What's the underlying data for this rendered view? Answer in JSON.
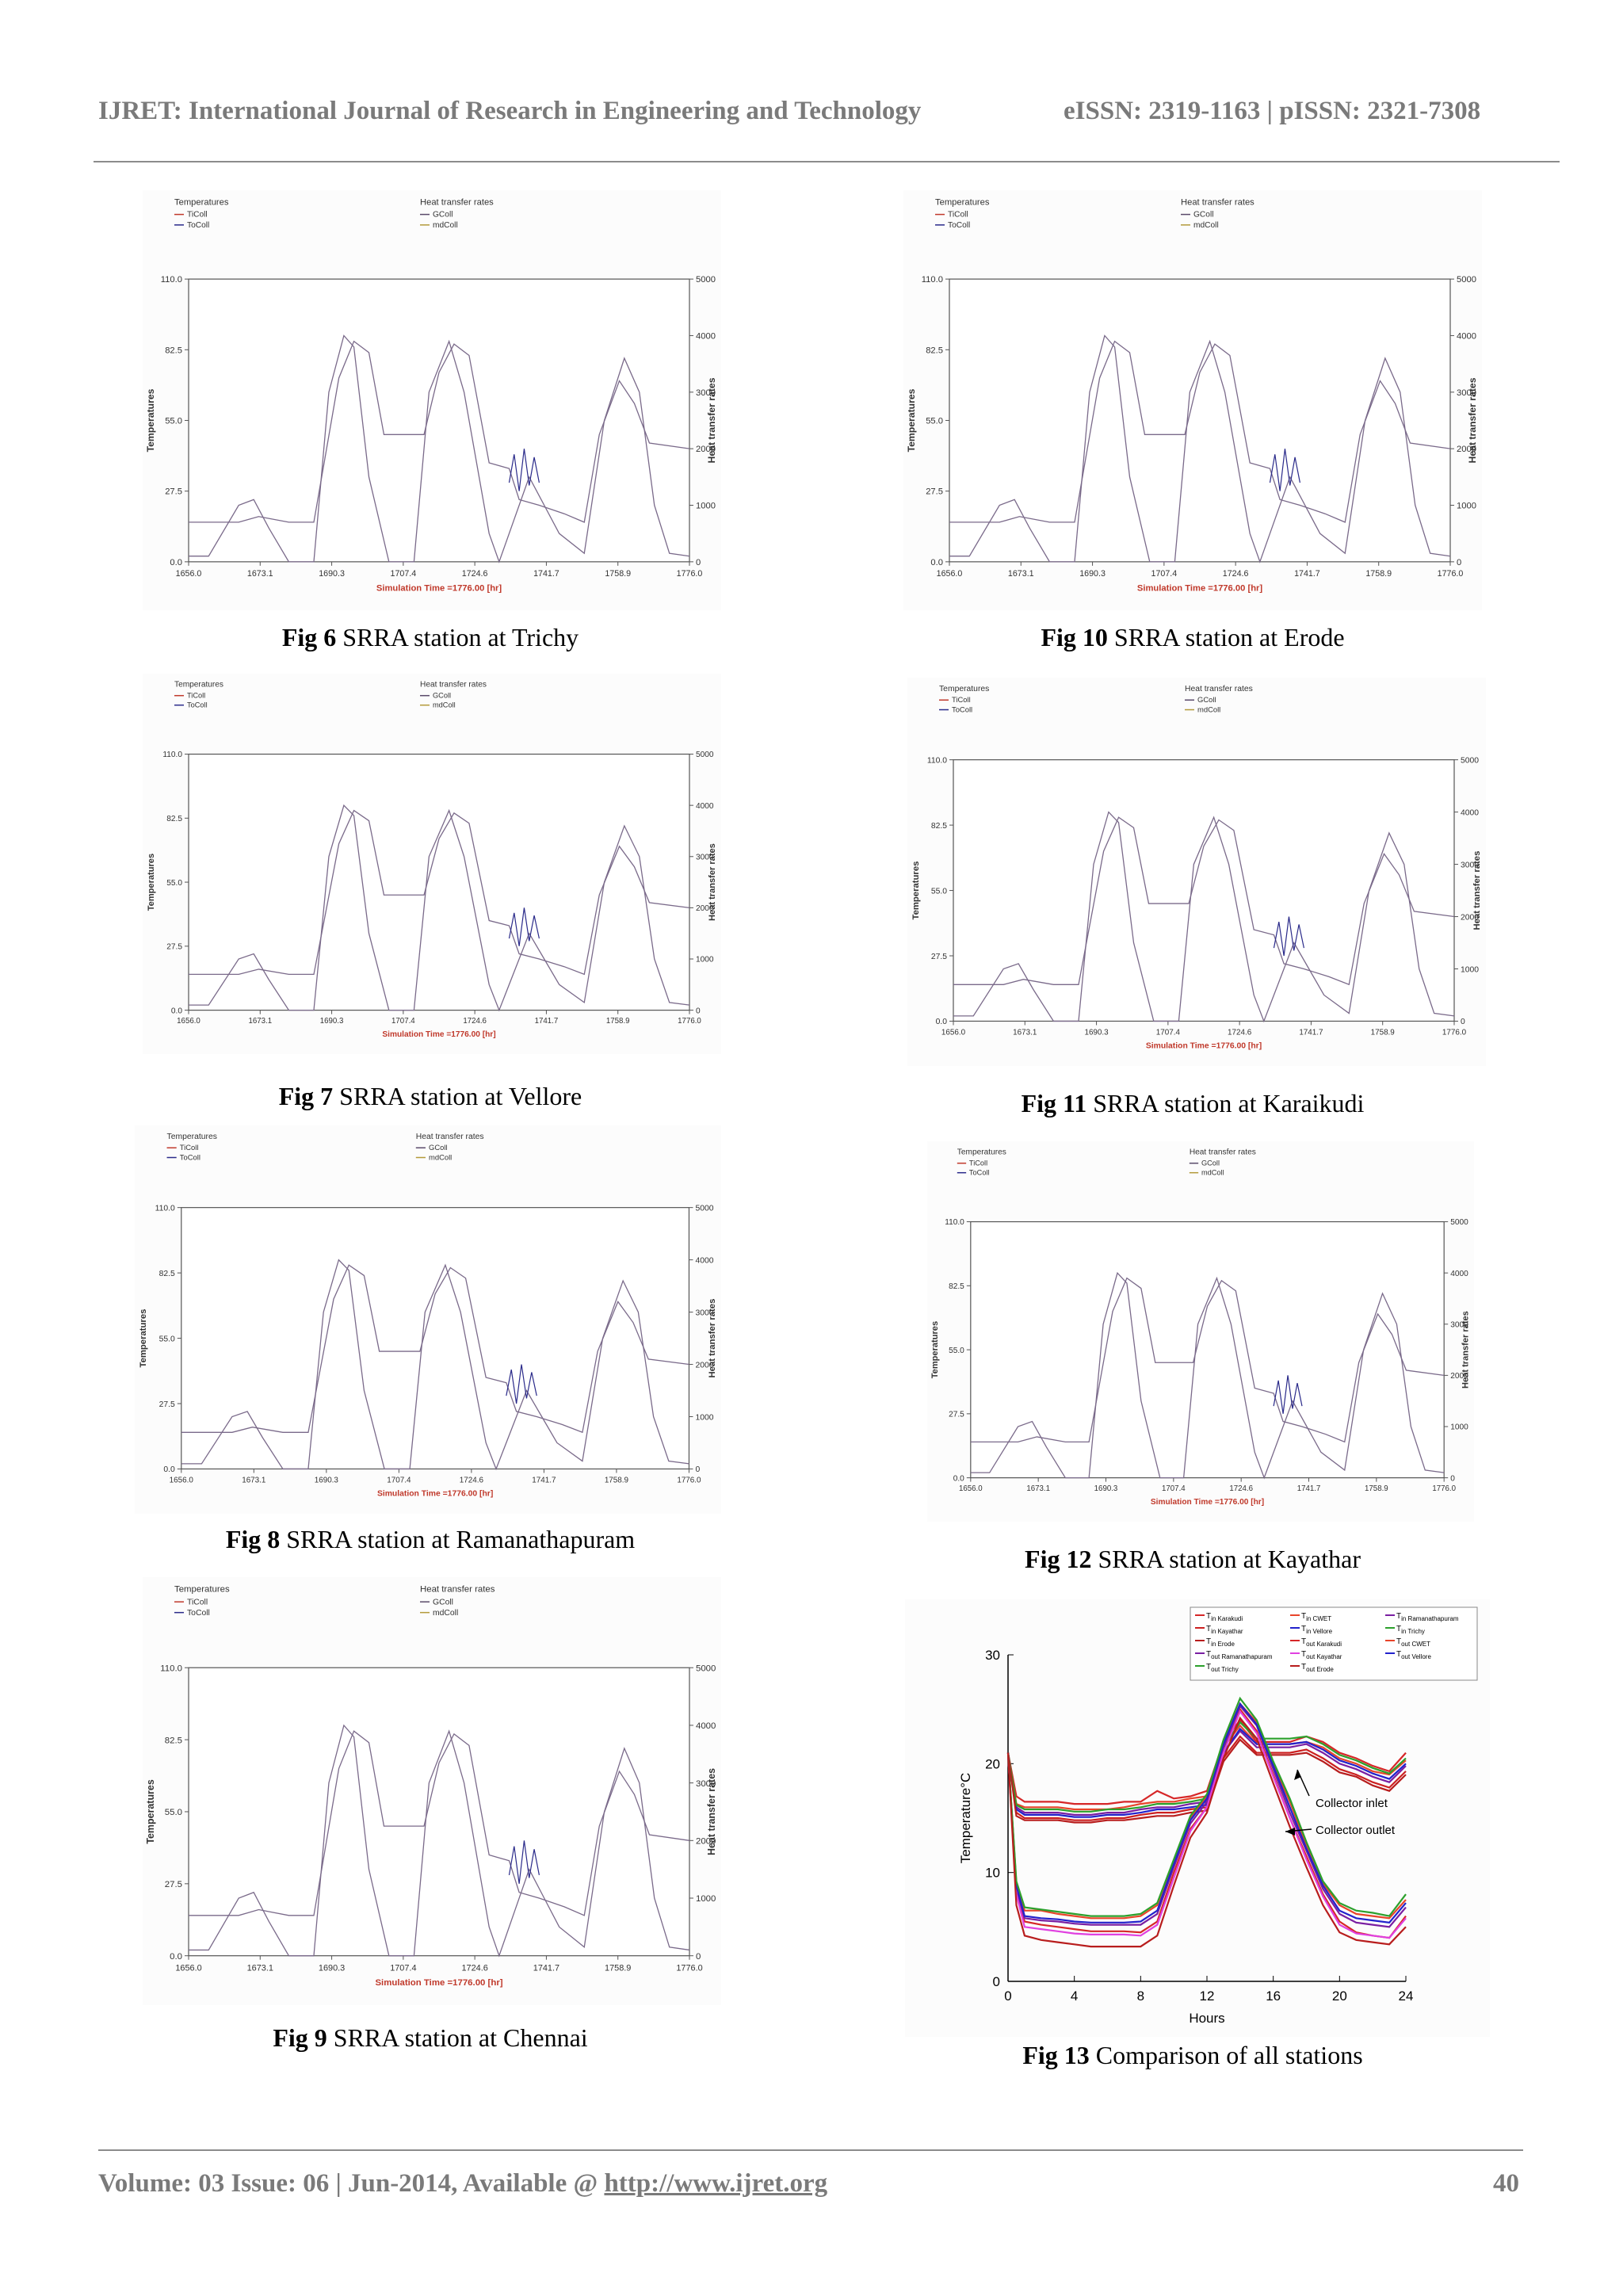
{
  "header": {
    "journal": "IJRET: International Journal of Research in Engineering and Technology",
    "issn": "eISSN: 2319-1163 | pISSN: 2321-7308"
  },
  "footer": {
    "volume_prefix": "Volume: 03 Issue: 06 | Jun-2014, Available @ ",
    "url": "http://www.ijret.org",
    "page_number": "40"
  },
  "trnsys_plot": {
    "legend_left_title": "Temperatures",
    "legend_left_items": [
      "TiColl",
      "ToColl"
    ],
    "legend_right_title": "Heat transfer rates",
    "legend_right_items": [
      "GColl",
      "mdColl"
    ],
    "y_left_label": "Temperatures",
    "y_right_label": "Heat transfer rates",
    "y_left_ticks": [
      "110.0",
      "82.5",
      "55.0",
      "27.5",
      "0.0"
    ],
    "y_right_ticks": [
      "5000",
      "4000",
      "3000",
      "2000",
      "1000",
      "0"
    ],
    "x_ticks": [
      "1656.0",
      "1673.1",
      "1690.3",
      "1707.4",
      "1724.6",
      "1741.7",
      "1758.9",
      "1776.0"
    ],
    "x_title": "Simulation Time =1776.00 [hr]",
    "colors": {
      "ticoll": "#c0392b",
      "tocoll": "#2a2a8a",
      "gcoll": "#5a4a6a",
      "mdcoll": "#b39a3a",
      "trace": "#7a6a8a"
    }
  },
  "figures": [
    {
      "num": "Fig 6",
      "title": " SRRA station at Trichy"
    },
    {
      "num": "Fig 10",
      "title": " SRRA station at Erode"
    },
    {
      "num": "Fig 7",
      "title": " SRRA station at Vellore"
    },
    {
      "num": "Fig 11",
      "title": " SRRA station at Karaikudi"
    },
    {
      "num": "Fig 8",
      "title": " SRRA station at Ramanathapuram"
    },
    {
      "num": "Fig 12",
      "title": " SRRA station at Kayathar"
    },
    {
      "num": "Fig 9",
      "title": " SRRA station at Chennai"
    },
    {
      "num": "Fig 13",
      "title": " Comparison of all stations"
    }
  ],
  "chart_data": {
    "type": "line",
    "title": "",
    "xlabel": "Hours",
    "ylabel": "Temperature°C",
    "xlim": [
      0,
      24
    ],
    "ylim": [
      0,
      30
    ],
    "x_ticks": [
      "0",
      "4",
      "8",
      "12",
      "16",
      "20",
      "24"
    ],
    "y_ticks": [
      "0",
      "10",
      "20",
      "30"
    ],
    "annotations": [
      "Collector inlet",
      "Collector outlet"
    ],
    "legend_position": "top-right",
    "x": [
      0,
      0.5,
      1,
      2,
      3,
      4,
      5,
      6,
      7,
      8,
      9,
      10,
      11,
      12,
      13,
      14,
      15,
      16,
      17,
      18,
      19,
      20,
      21,
      22,
      23,
      24
    ],
    "series": [
      {
        "name": "Tin Karakudi",
        "color": "#d62728",
        "values": [
          21,
          17,
          16.5,
          16.5,
          16.5,
          16.3,
          16.3,
          16.3,
          16.5,
          16.5,
          17.5,
          16.8,
          17,
          17.5,
          22,
          24,
          22,
          22,
          22,
          22.5,
          22,
          21,
          20.5,
          19.8,
          19.3,
          21
        ]
      },
      {
        "name": "Tin CWET",
        "color": "#e8452a",
        "values": [
          21,
          16.3,
          16,
          16,
          16,
          15.8,
          15.8,
          15.8,
          16,
          16.3,
          16.5,
          16.5,
          16.8,
          17,
          21.5,
          23.5,
          21.8,
          21.8,
          21.8,
          22,
          21.5,
          20.5,
          20,
          19.3,
          19,
          20.3
        ]
      },
      {
        "name": "Tin Ramanathapuram",
        "color": "#7a1fa2",
        "values": [
          21,
          16,
          15.5,
          15.5,
          15.5,
          15.3,
          15.3,
          15.5,
          15.5,
          15.8,
          16,
          16,
          16.3,
          16.5,
          21,
          23,
          21.5,
          21.5,
          21.5,
          21.8,
          21,
          20,
          19.5,
          18.8,
          18.3,
          19.8
        ]
      },
      {
        "name": "Tin Kayathar",
        "color": "#cc2020",
        "values": [
          21,
          15.5,
          15,
          15,
          15,
          14.8,
          14.8,
          15,
          15,
          15.3,
          15.5,
          15.5,
          15.8,
          16,
          20.5,
          22.5,
          21,
          21,
          21,
          21.3,
          20.5,
          19.5,
          19,
          18.3,
          17.8,
          19.3
        ]
      },
      {
        "name": "Tin Vellore",
        "color": "#2222cc",
        "values": [
          21,
          15.8,
          15.3,
          15.3,
          15.3,
          15.1,
          15.1,
          15.3,
          15.3,
          15.5,
          15.8,
          15.8,
          16,
          16.2,
          21,
          23.2,
          21.8,
          21.8,
          21.8,
          22,
          21.3,
          20.3,
          19.8,
          19.1,
          18.6,
          20
        ]
      },
      {
        "name": "Tin Trichy",
        "color": "#2ca02c",
        "values": [
          21,
          16.2,
          15.8,
          15.8,
          15.8,
          15.6,
          15.6,
          15.8,
          15.8,
          16,
          16.3,
          16.3,
          16.5,
          16.8,
          21.5,
          23.8,
          22.3,
          22.3,
          22.3,
          22.5,
          21.8,
          20.8,
          20.3,
          19.6,
          19.1,
          20.5
        ]
      },
      {
        "name": "Tin Erode",
        "color": "#b81d1d",
        "values": [
          21,
          15.2,
          14.8,
          14.8,
          14.8,
          14.6,
          14.6,
          14.8,
          14.8,
          15,
          15.2,
          15.2,
          15.5,
          15.7,
          20.2,
          22.2,
          20.8,
          20.8,
          20.8,
          21,
          20.2,
          19.2,
          18.8,
          18,
          17.5,
          19
        ]
      },
      {
        "name": "Tout Karakudi",
        "color": "#d62728",
        "values": [
          21,
          8,
          5.5,
          5.2,
          5,
          4.8,
          4.6,
          4.6,
          4.6,
          4.5,
          5.5,
          10,
          14,
          16,
          21,
          25,
          23,
          19,
          15,
          11.5,
          8,
          5.5,
          4.5,
          4.2,
          4,
          6
        ]
      },
      {
        "name": "Tout CWET",
        "color": "#e8452a",
        "values": [
          21,
          9,
          6.5,
          6.5,
          6.2,
          6,
          5.8,
          5.8,
          5.8,
          6,
          7,
          11,
          15,
          17,
          22,
          25.5,
          23.8,
          20,
          16.5,
          12.5,
          9,
          7,
          6.2,
          6,
          5.8,
          7.5
        ]
      },
      {
        "name": "Tout Ramanathapuram",
        "color": "#7a1fa2",
        "values": [
          21,
          8.5,
          5.8,
          5.6,
          5.5,
          5.3,
          5.2,
          5.2,
          5.2,
          5.2,
          6.2,
          10.5,
          14.5,
          16.5,
          21.5,
          25.3,
          23.5,
          19.5,
          15.5,
          12,
          8.5,
          6.2,
          5.4,
          5.2,
          5,
          6.8
        ]
      },
      {
        "name": "Tout Kayathar",
        "color": "#e040e0",
        "values": [
          21,
          8,
          5,
          4.8,
          4.6,
          4.4,
          4.3,
          4.3,
          4.3,
          4.2,
          5.2,
          9.5,
          13.8,
          16,
          21,
          24.8,
          22.8,
          18.8,
          15,
          11.2,
          7.8,
          5.2,
          4.4,
          4.2,
          4,
          5.8
        ]
      },
      {
        "name": "Tout Vellore",
        "color": "#2222cc",
        "values": [
          21,
          8.8,
          6,
          5.8,
          5.7,
          5.5,
          5.4,
          5.4,
          5.4,
          5.5,
          6.5,
          10.8,
          14.8,
          16.8,
          21.8,
          25.5,
          23.6,
          19.8,
          16,
          12.2,
          8.8,
          6.5,
          5.8,
          5.6,
          5.4,
          7.2
        ]
      },
      {
        "name": "Tout Trichy",
        "color": "#2ca02c",
        "values": [
          21,
          9.2,
          6.8,
          6.6,
          6.4,
          6.2,
          6,
          6,
          6,
          6.2,
          7.2,
          11.2,
          15.2,
          17.2,
          22.2,
          26,
          24,
          20.2,
          16.8,
          12.8,
          9.2,
          7.2,
          6.5,
          6.3,
          6,
          8
        ]
      },
      {
        "name": "Tout Erode",
        "color": "#b81d1d",
        "values": [
          21,
          7,
          4.2,
          3.8,
          3.6,
          3.4,
          3.2,
          3.2,
          3.2,
          3.2,
          4.2,
          8.8,
          13.2,
          15.5,
          20.5,
          24.2,
          22.3,
          18.2,
          14.2,
          10.5,
          7,
          4.5,
          3.8,
          3.6,
          3.4,
          5
        ]
      }
    ],
    "legend_labels": [
      {
        "base": "T",
        "sub": "in Karakudi",
        "color": "#d62728"
      },
      {
        "base": "T",
        "sub": "in CWET",
        "color": "#e8452a"
      },
      {
        "base": "T",
        "sub": "in Ramanathapuram",
        "color": "#7a1fa2"
      },
      {
        "base": "T",
        "sub": "in Kayathar",
        "color": "#cc2020"
      },
      {
        "base": "T",
        "sub": "in Vellore",
        "color": "#2222cc"
      },
      {
        "base": "T",
        "sub": "in Trichy",
        "color": "#2ca02c"
      },
      {
        "base": "T",
        "sub": "in Erode",
        "color": "#b81d1d"
      },
      {
        "base": "T",
        "sub": "out Karakudi",
        "color": "#d62728"
      },
      {
        "base": "T",
        "sub": "out CWET",
        "color": "#e8452a"
      },
      {
        "base": "T",
        "sub": "out Ramanathapuram",
        "color": "#7a1fa2"
      },
      {
        "base": "T",
        "sub": "out Kayathar",
        "color": "#e040e0"
      },
      {
        "base": "T",
        "sub": "out Vellore",
        "color": "#2222cc"
      },
      {
        "base": "T",
        "sub": "out Trichy",
        "color": "#2ca02c"
      },
      {
        "base": "T",
        "sub": "out Erode",
        "color": "#b81d1d"
      }
    ]
  }
}
